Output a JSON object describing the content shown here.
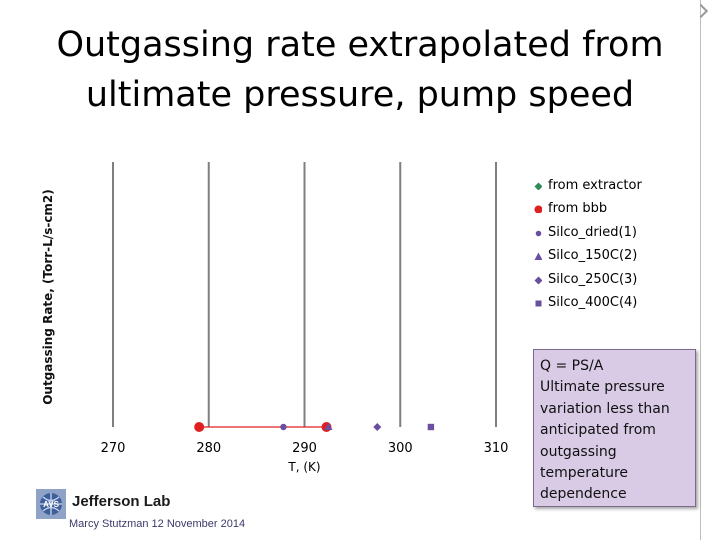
{
  "title": {
    "line1": "Outgassing rate extrapolated from",
    "line2": "ultimate pressure, pump speed"
  },
  "chart_data": {
    "type": "scatter",
    "xlabel": "T, (K)",
    "ylabel": "Outgassing Rate, (Torr-L/s-cm2)",
    "xlim": [
      270,
      310
    ],
    "x_ticks": [
      "270",
      "280",
      "290",
      "300",
      "310"
    ],
    "vertical_grid": true,
    "legend_position": "right",
    "series": [
      {
        "name": "from extractor",
        "color": "#2e8b57",
        "marker": "diamond",
        "points": []
      },
      {
        "name": "from bbb",
        "color": "#e02020",
        "marker": "circle",
        "points": [
          {
            "x": 279.0
          },
          {
            "x": 292.3
          }
        ]
      },
      {
        "name": "Silco_dried(1)",
        "color": "#6a4fa0",
        "marker": "circle-small",
        "points": [
          {
            "x": 287.8
          }
        ]
      },
      {
        "name": "Silco_150C(2)",
        "color": "#6a4fa0",
        "marker": "triangle",
        "points": [
          {
            "x": 292.5
          }
        ]
      },
      {
        "name": "Silco_250C(3)",
        "color": "#6a4fa0",
        "marker": "diamond",
        "points": [
          {
            "x": 297.6
          }
        ]
      },
      {
        "name": "Silco_400C(4)",
        "color": "#6a4fa0",
        "marker": "square",
        "points": [
          {
            "x": 303.2
          }
        ]
      }
    ]
  },
  "note": {
    "lines": [
      "Q = PS/A",
      "Ultimate pressure",
      "variation less than",
      "anticipated from",
      "outgassing",
      "temperature",
      "dependence"
    ]
  },
  "logo": {
    "mark_text": "AVS",
    "name": "Jefferson Lab"
  },
  "footer": "Marcy Stutzman 12 November 2014"
}
